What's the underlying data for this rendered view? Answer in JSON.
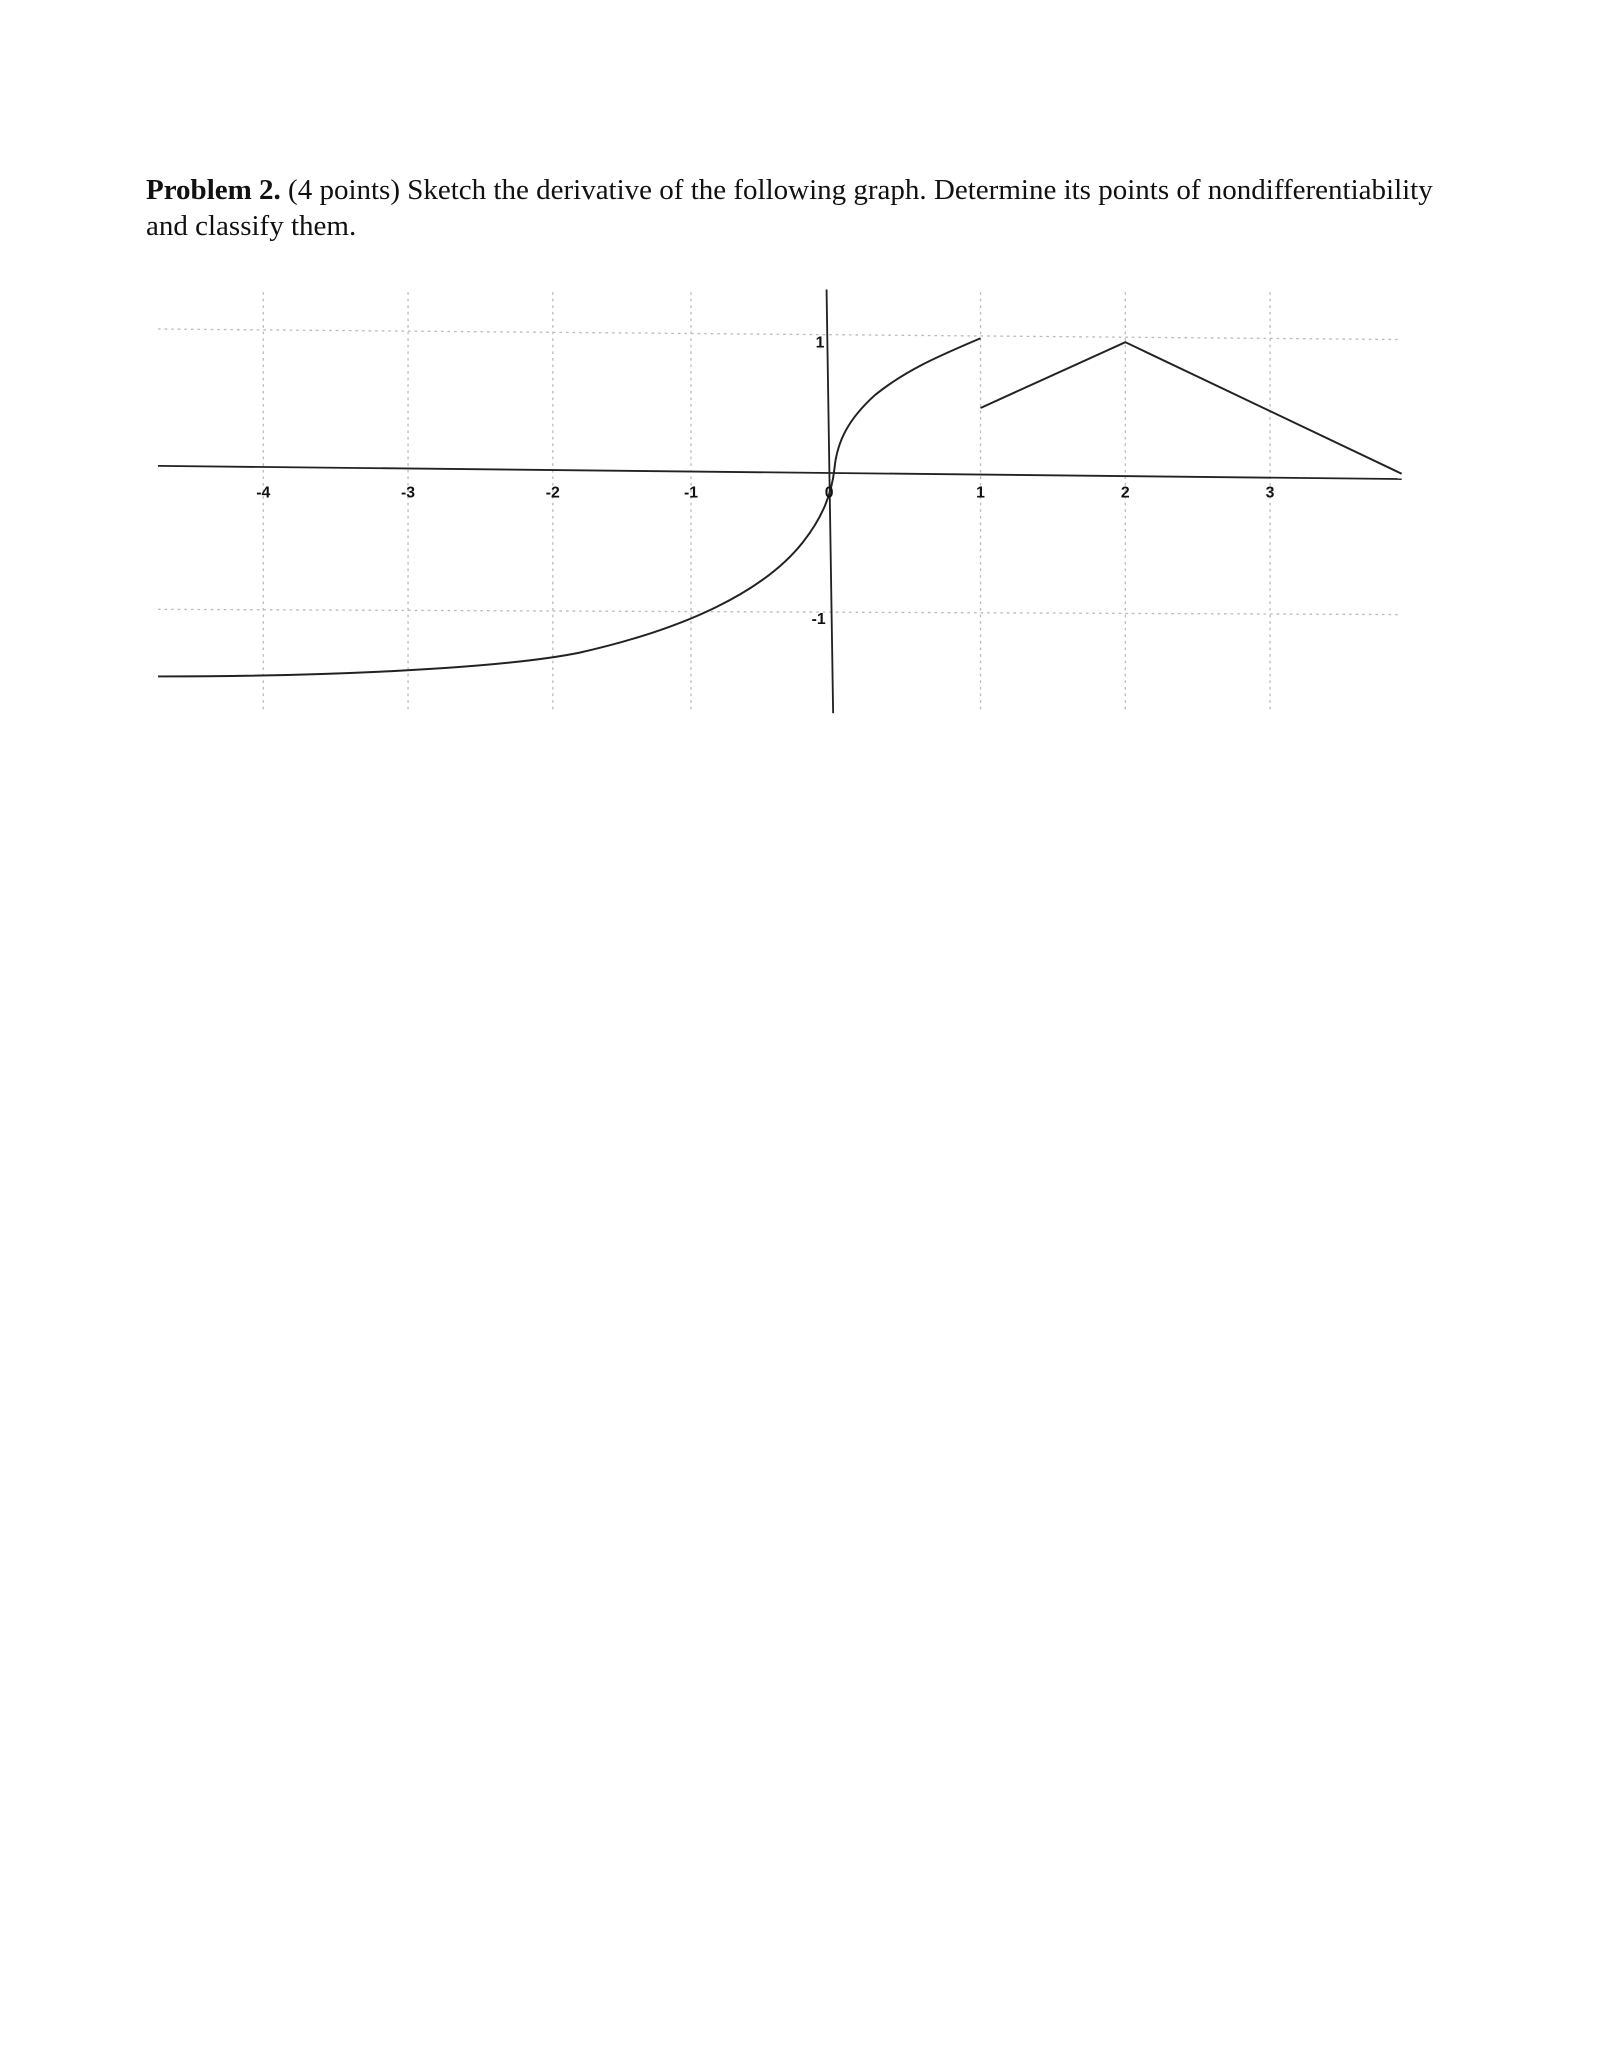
{
  "problem": {
    "label": "Problem 2.",
    "text": "(4 points) Sketch the derivative of the following graph. Determine its points of nondifferentiability and classify them."
  },
  "graph": {
    "x_tick_labels": [
      "-4",
      "-3",
      "-2",
      "-1",
      "0",
      "1",
      "2",
      "3"
    ],
    "y_tick_labels": [
      "1",
      "-1"
    ]
  }
}
